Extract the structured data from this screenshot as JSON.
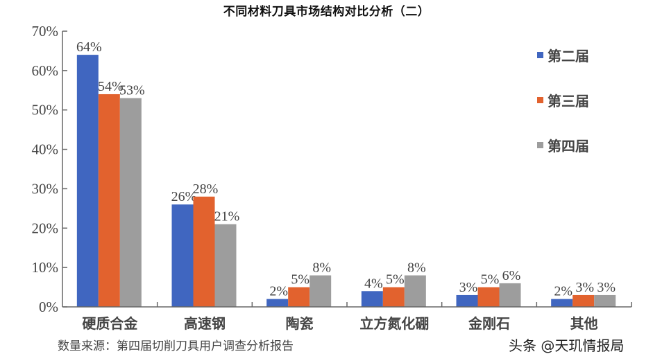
{
  "title": "不同材料刀具市场结构对比分析（二）",
  "source_note": "数量来源：第四届切削刀具用户调查分析报告",
  "watermark": "头条 @天玑情报局",
  "colors": {
    "series_1": "#4066c0",
    "series_2": "#e2622e",
    "series_3": "#9d9d9d",
    "axis": "#666666"
  },
  "legend": [
    {
      "label": "第二届",
      "color": "#4066c0"
    },
    {
      "label": "第三届",
      "color": "#e2622e"
    },
    {
      "label": "第四届",
      "color": "#9d9d9d"
    }
  ],
  "chart_data": {
    "type": "bar",
    "title": "不同材料刀具市场结构对比分析（二）",
    "xlabel": "",
    "ylabel": "",
    "ylim": [
      0,
      70
    ],
    "yticks": [
      "0%",
      "10%",
      "20%",
      "30%",
      "40%",
      "50%",
      "60%",
      "70%"
    ],
    "categories": [
      "硬质合金",
      "高速钢",
      "陶瓷",
      "立方氮化硼",
      "金刚石",
      "其他"
    ],
    "series": [
      {
        "name": "第二届",
        "values": [
          64,
          26,
          2,
          4,
          3,
          2
        ],
        "labels": [
          "64%",
          "26%",
          "2%",
          "4%",
          "3%",
          "2%"
        ]
      },
      {
        "name": "第三届",
        "values": [
          54,
          28,
          5,
          5,
          5,
          3
        ],
        "labels": [
          "54%",
          "28%",
          "5%",
          "5%",
          "5%",
          "3%"
        ]
      },
      {
        "name": "第四届",
        "values": [
          53,
          21,
          8,
          8,
          6,
          3
        ],
        "labels": [
          "53%",
          "21%",
          "8%",
          "8%",
          "6%",
          "3%"
        ]
      }
    ],
    "grid": false,
    "legend_position": "upper right"
  }
}
